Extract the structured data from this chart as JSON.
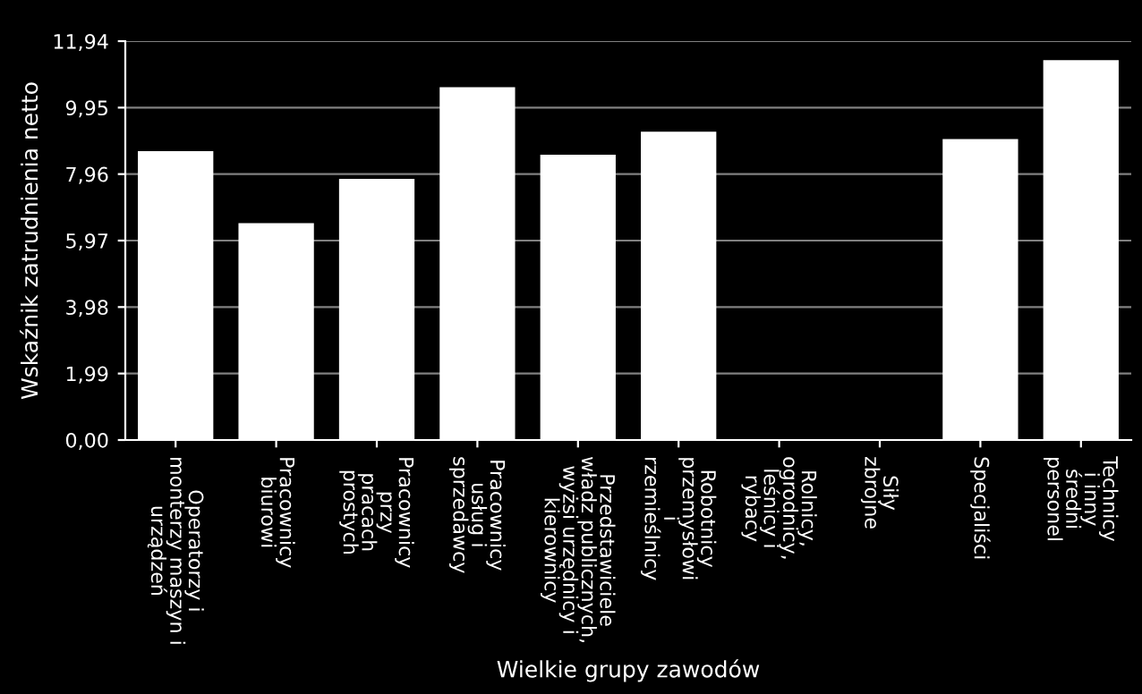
{
  "chart_data": {
    "type": "bar",
    "xlabel": "Wielkie grupy zawodów",
    "ylabel": "Wskaźnik zatrudnienia netto",
    "categories": [
      "Operatorzy i\nmonterzy maszyn i\nurządzeń",
      "Pracownicy\nbiurowi",
      "Pracownicy\nprzy\npracach\nprostych",
      "Pracownicy\nusług i\nsprzedawcy",
      "Przedstawiciele\nwładz publicznych,\nwyżsi urzędnicy i\nkierownicy",
      "Robotnicy\nprzemysłowi\ni\nrzemieślnicy",
      "Rolnicy,\nogrodnicy,\nleśnicy i\nrybacy",
      "Siły\nzbrojne",
      "Specjaliści",
      "Technicy\ni inny\nśredni\npersonel"
    ],
    "values": [
      8.65,
      6.49,
      7.82,
      10.56,
      8.54,
      9.23,
      null,
      null,
      9.01,
      11.37
    ],
    "color": "#ffffff",
    "ylim": [
      0,
      11.94
    ],
    "yticks": [
      {
        "value": 0,
        "label": "0,00"
      },
      {
        "value": 1.99,
        "label": "1,99"
      },
      {
        "value": 3.98,
        "label": "3,98"
      },
      {
        "value": 5.97,
        "label": "5,97"
      },
      {
        "value": 7.96,
        "label": "7,96"
      },
      {
        "value": 9.95,
        "label": "9,95"
      },
      {
        "value": 11.94,
        "label": "11,94"
      }
    ],
    "grid": "y"
  }
}
